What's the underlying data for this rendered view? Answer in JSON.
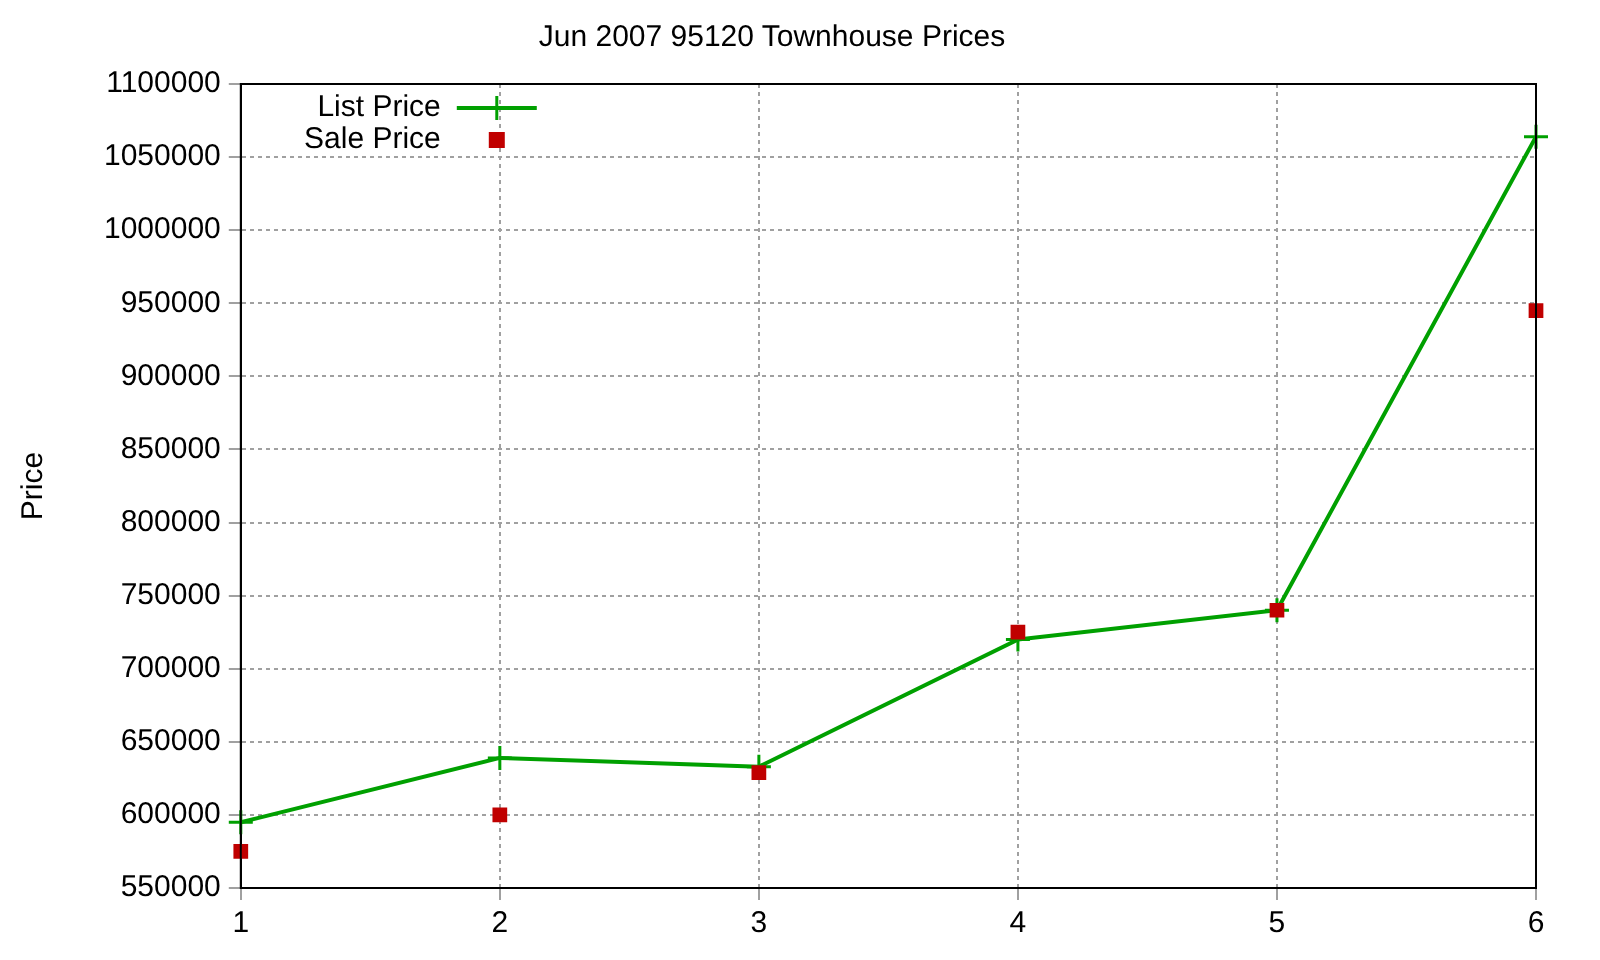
{
  "chart_data": {
    "type": "line",
    "title": "Jun 2007 95120 Townhouse Prices",
    "ylabel": "Price",
    "x": [
      1,
      2,
      3,
      4,
      5,
      6
    ],
    "series": [
      {
        "name": "List Price",
        "color": "#00a000",
        "marker": "cross",
        "values": [
          595000,
          639000,
          633000,
          720000,
          740000,
          1064000
        ]
      },
      {
        "name": "Sale Price",
        "type": "scatter",
        "color": "#c00000",
        "marker": "square",
        "values": [
          575000,
          600000,
          629000,
          725000,
          740000,
          945000
        ]
      }
    ],
    "xlim": [
      1,
      6
    ],
    "xticks": [
      1,
      2,
      3,
      4,
      5,
      6
    ],
    "ylim": [
      550000,
      1100000
    ],
    "yticks": [
      550000,
      600000,
      650000,
      700000,
      750000,
      800000,
      850000,
      900000,
      950000,
      1000000,
      1050000,
      1100000
    ],
    "grid": true,
    "legend": "top left"
  }
}
